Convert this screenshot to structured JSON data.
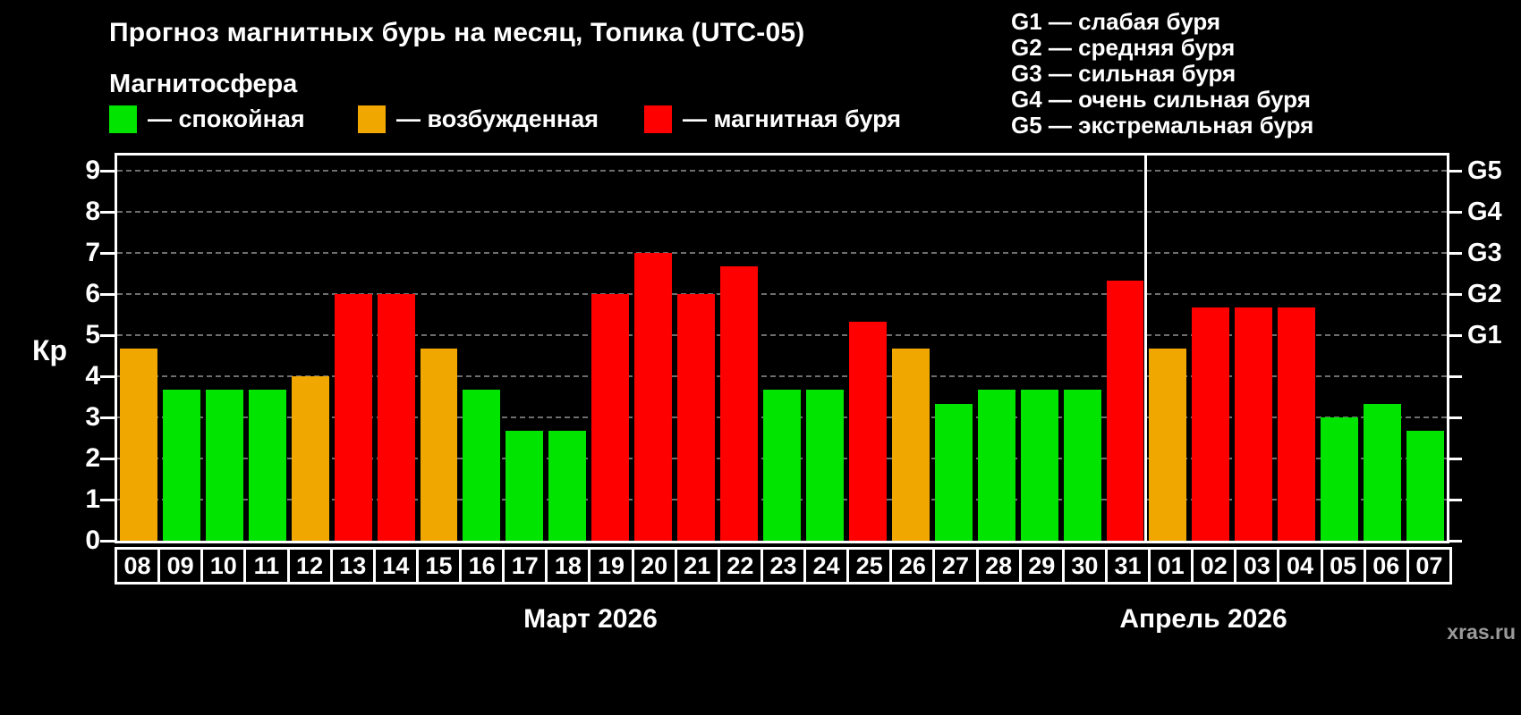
{
  "title": "Прогноз магнитных бурь на месяц, Топика (UTC-05)",
  "subtitle": "Магнитосфера",
  "ylabel": "Кр",
  "watermark": "xras.ru",
  "status_colors": {
    "quiet": "#00e400",
    "excited": "#f0a800",
    "storm": "#ff0000"
  },
  "legend": [
    {
      "status": "quiet",
      "label": "— спокойная"
    },
    {
      "status": "excited",
      "label": "— возбужденная"
    },
    {
      "status": "storm",
      "label": "— магнитная буря"
    }
  ],
  "g_legend": [
    "G1 — слабая буря",
    "G2 — средняя буря",
    "G3 — сильная буря",
    "G4 — очень сильная буря",
    "G5 — экстремальная буря"
  ],
  "chart_data": {
    "type": "bar",
    "title": "Прогноз магнитных бурь на месяц, Топика (UTC-05)",
    "ylabel": "Кр",
    "ylim": [
      0,
      9
    ],
    "yticks": [
      0,
      1,
      2,
      3,
      4,
      5,
      6,
      7,
      8,
      9
    ],
    "grid": "horizontal-dashed",
    "right_axis": [
      {
        "label": "G1",
        "value": 5
      },
      {
        "label": "G2",
        "value": 6
      },
      {
        "label": "G3",
        "value": 7
      },
      {
        "label": "G4",
        "value": 8
      },
      {
        "label": "G5",
        "value": 9
      }
    ],
    "months": [
      {
        "label": "Март 2026",
        "days": 24
      },
      {
        "label": "Апрель 2026",
        "days": 7
      }
    ],
    "bars": [
      {
        "day": "08",
        "value": 4.67,
        "status": "excited"
      },
      {
        "day": "09",
        "value": 3.67,
        "status": "quiet"
      },
      {
        "day": "10",
        "value": 3.67,
        "status": "quiet"
      },
      {
        "day": "11",
        "value": 3.67,
        "status": "quiet"
      },
      {
        "day": "12",
        "value": 4.0,
        "status": "excited"
      },
      {
        "day": "13",
        "value": 6.0,
        "status": "storm"
      },
      {
        "day": "14",
        "value": 6.0,
        "status": "storm"
      },
      {
        "day": "15",
        "value": 4.67,
        "status": "excited"
      },
      {
        "day": "16",
        "value": 3.67,
        "status": "quiet"
      },
      {
        "day": "17",
        "value": 2.67,
        "status": "quiet"
      },
      {
        "day": "18",
        "value": 2.67,
        "status": "quiet"
      },
      {
        "day": "19",
        "value": 6.0,
        "status": "storm"
      },
      {
        "day": "20",
        "value": 7.0,
        "status": "storm"
      },
      {
        "day": "21",
        "value": 6.0,
        "status": "storm"
      },
      {
        "day": "22",
        "value": 6.67,
        "status": "storm"
      },
      {
        "day": "23",
        "value": 3.67,
        "status": "quiet"
      },
      {
        "day": "24",
        "value": 3.67,
        "status": "quiet"
      },
      {
        "day": "25",
        "value": 5.33,
        "status": "storm"
      },
      {
        "day": "26",
        "value": 4.67,
        "status": "excited"
      },
      {
        "day": "27",
        "value": 3.33,
        "status": "quiet"
      },
      {
        "day": "28",
        "value": 3.67,
        "status": "quiet"
      },
      {
        "day": "29",
        "value": 3.67,
        "status": "quiet"
      },
      {
        "day": "30",
        "value": 3.67,
        "status": "quiet"
      },
      {
        "day": "31",
        "value": 6.33,
        "status": "storm"
      },
      {
        "day": "01",
        "value": 4.67,
        "status": "excited"
      },
      {
        "day": "02",
        "value": 5.67,
        "status": "storm"
      },
      {
        "day": "03",
        "value": 5.67,
        "status": "storm"
      },
      {
        "day": "04",
        "value": 5.67,
        "status": "storm"
      },
      {
        "day": "05",
        "value": 3.0,
        "status": "quiet"
      },
      {
        "day": "06",
        "value": 3.33,
        "status": "quiet"
      },
      {
        "day": "07",
        "value": 2.67,
        "status": "quiet"
      }
    ]
  }
}
